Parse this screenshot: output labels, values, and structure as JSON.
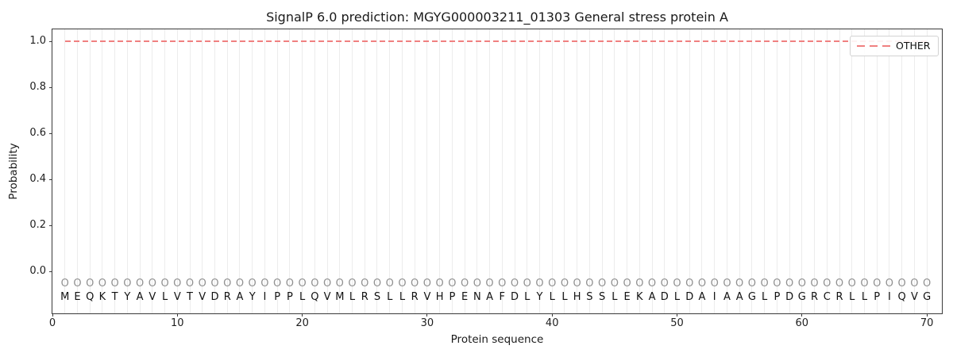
{
  "chart_data": {
    "type": "line",
    "title": "SignalP 6.0 prediction: MGYG000003211_01303 General stress protein A",
    "xlabel": "Protein sequence",
    "ylabel": "Probability",
    "xlim": [
      0,
      71.2
    ],
    "ylim": [
      -0.181,
      1.052
    ],
    "xticks": [
      0,
      10,
      20,
      30,
      40,
      50,
      60,
      70
    ],
    "yticks": [
      0.0,
      0.2,
      0.4,
      0.6,
      0.8,
      1.0
    ],
    "grid": {
      "axis": "x",
      "per_residue": true,
      "color": "#ececec"
    },
    "legend": {
      "position": "upper right",
      "entries": [
        {
          "label": "OTHER",
          "line_style": "dashed",
          "color": "#f08080"
        }
      ]
    },
    "series": [
      {
        "name": "OTHER",
        "line_style": "dashed",
        "color": "#f08080",
        "x": [
          1,
          2,
          3,
          4,
          5,
          6,
          7,
          8,
          9,
          10,
          11,
          12,
          13,
          14,
          15,
          16,
          17,
          18,
          19,
          20,
          21,
          22,
          23,
          24,
          25,
          26,
          27,
          28,
          29,
          30,
          31,
          32,
          33,
          34,
          35,
          36,
          37,
          38,
          39,
          40,
          41,
          42,
          43,
          44,
          45,
          46,
          47,
          48,
          49,
          50,
          51,
          52,
          53,
          54,
          55,
          56,
          57,
          58,
          59,
          60,
          61,
          62,
          63,
          64,
          65,
          66,
          67,
          68,
          69,
          70
        ],
        "values": [
          1.0,
          1.0,
          1.0,
          1.0,
          1.0,
          1.0,
          1.0,
          1.0,
          1.0,
          1.0,
          1.0,
          1.0,
          1.0,
          1.0,
          1.0,
          1.0,
          1.0,
          1.0,
          1.0,
          1.0,
          1.0,
          1.0,
          1.0,
          1.0,
          1.0,
          1.0,
          1.0,
          1.0,
          1.0,
          1.0,
          1.0,
          1.0,
          1.0,
          1.0,
          1.0,
          1.0,
          1.0,
          1.0,
          1.0,
          1.0,
          1.0,
          1.0,
          1.0,
          1.0,
          1.0,
          1.0,
          1.0,
          1.0,
          1.0,
          1.0,
          1.0,
          1.0,
          1.0,
          1.0,
          1.0,
          1.0,
          1.0,
          1.0,
          1.0,
          1.0,
          1.0,
          1.0,
          1.0,
          1.0,
          1.0,
          1.0,
          1.0,
          1.0,
          1.0,
          1.0
        ]
      }
    ],
    "sequence": {
      "residues": "MEQKTYAVLVTVDRAYIPPLQVMLRSLLRVHPENAFDLYLLHSSLEKADLDAIAAGLPDGRCRLLPIQVG",
      "prediction_labels": "OOOOOOOOOOOOOOOOOOOOOOOOOOOOOOOOOOOOOOOOOOOOOOOOOOOOOOOOOOOOOOOOOOOOOO",
      "prediction_label_color": "#909090",
      "label_row_y": -0.055,
      "residue_row_y": -0.112
    }
  },
  "colors": {
    "background": "#ffffff",
    "spine": "#3a3a3a",
    "grid": "#ececec",
    "text": "#1a1a1a",
    "series_red": "#f08080"
  }
}
